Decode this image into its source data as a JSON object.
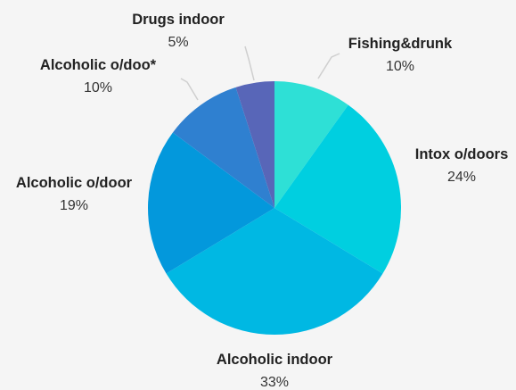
{
  "chart_data": {
    "type": "pie",
    "title": "",
    "slices": [
      {
        "label": "Fishing&drunk",
        "value": 10,
        "value_label": "10%",
        "color": "#2ee0d6"
      },
      {
        "label": "Intox o/doors",
        "value": 24,
        "value_label": "24%",
        "color": "#00cfe0"
      },
      {
        "label": "Alcoholic indoor",
        "value": 33,
        "value_label": "33%",
        "color": "#00b8e3"
      },
      {
        "label": "Alcoholic o/door",
        "value": 19,
        "value_label": "19%",
        "color": "#0398dc"
      },
      {
        "label": "Alcoholic o/doo*",
        "value": 10,
        "value_label": "10%",
        "color": "#2f80d0"
      },
      {
        "label": "Drugs indoor",
        "value": 5,
        "value_label": "5%",
        "color": "#5866b8"
      }
    ],
    "start_angle": "12 o'clock",
    "direction": "clockwise",
    "legend": "none",
    "labels": "outside with leader lines"
  }
}
